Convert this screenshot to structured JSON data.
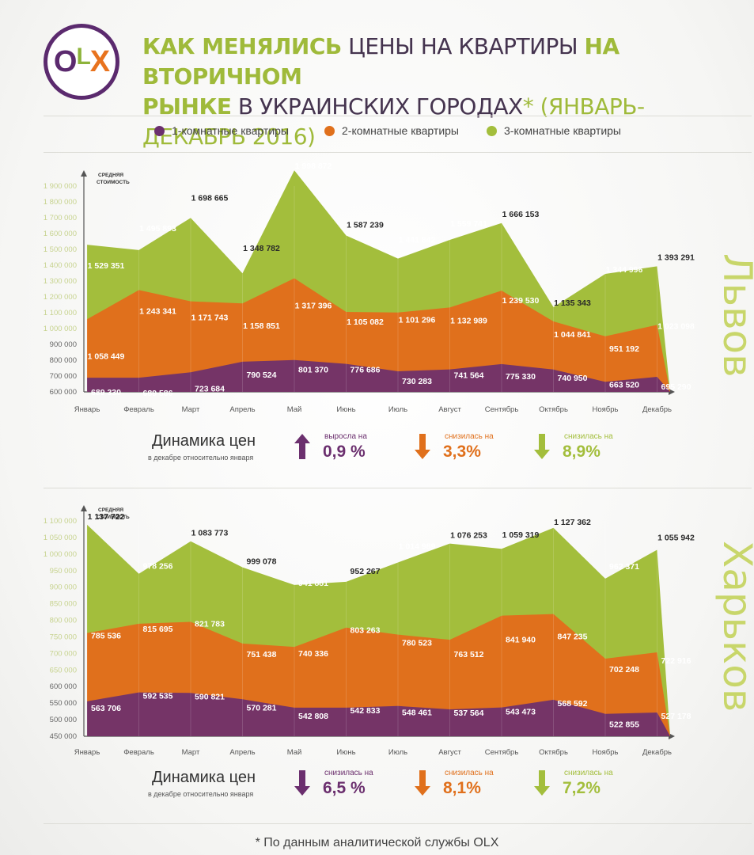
{
  "header": {
    "title_p1_hl": "КАК МЕНЯЛИСЬ",
    "title_p1_dk": " ЦЕНЫ НА КВАРТИРЫ ",
    "title_p1_hl2": "НА ВТОРИЧНОМ",
    "title_p2_hl": "РЫНКЕ",
    "title_p2_dk": " В УКРАИНСКИХ ГОРОДАХ",
    "title_ast": "*",
    "title_period": " (ЯНВАРЬ-ДЕКАБРЬ 2016)",
    "logo_o": "O",
    "logo_l": "L",
    "logo_x": "X"
  },
  "legend": [
    {
      "label": "1-комнатные квартиры",
      "color": "#6b2f6e"
    },
    {
      "label": "2-комнатные квартиры",
      "color": "#e0701c"
    },
    {
      "label": "3-комнатные квартиры",
      "color": "#a3be3c"
    }
  ],
  "chart_data": [
    {
      "type": "area",
      "city": "Львов",
      "ylabel": "СРЕДНЯЯ СТОИМОСТЬ",
      "ylim": [
        600000,
        1900000
      ],
      "yticks": [
        "600 000",
        "700 000",
        "800 000",
        "900 000",
        "1 000 000",
        "1 100 000",
        "1 200 000",
        "1 300 000",
        "1 400 000",
        "1 500 000",
        "1 600 000",
        "1 700 000",
        "1 800 000",
        "1 900 000"
      ],
      "categories": [
        "Январь",
        "Февраль",
        "Март",
        "Апрель",
        "Май",
        "Июнь",
        "Июль",
        "Август",
        "Сентябрь",
        "Октябрь",
        "Ноябрь",
        "Декабрь"
      ],
      "series": [
        {
          "name": "1-комнатные квартиры",
          "color": "#6b2f6e",
          "values": [
            689330,
            689586,
            723684,
            790524,
            801370,
            776686,
            730283,
            741564,
            775330,
            740950,
            663520,
            695290
          ],
          "labels": [
            "689 330",
            "689 586",
            "723 684",
            "790 524",
            "801 370",
            "776 686",
            "730 283",
            "741 564",
            "775 330",
            "740 950",
            "663 520",
            "695 290"
          ]
        },
        {
          "name": "2-комнатные квартиры",
          "color": "#e0701c",
          "values": [
            1058449,
            1243341,
            1171743,
            1158851,
            1317396,
            1105082,
            1101296,
            1132989,
            1239530,
            1044841,
            951192,
            1023098
          ],
          "labels": [
            "1 058 449",
            "1 243 341",
            "1 171 743",
            "1 158 851",
            "1 317 396",
            "1 105 082",
            "1 101 296",
            "1 132 989",
            "1 239 530",
            "1 044 841",
            "951 192",
            "1 023 098"
          ]
        },
        {
          "name": "3-комнатные квартиры",
          "color": "#a3be3c",
          "values": [
            1529351,
            1495893,
            1698665,
            1348782,
            1998872,
            1587239,
            1441842,
            1559741,
            1666153,
            1135343,
            1344996,
            1393291
          ],
          "labels": [
            "1 529 351",
            "1 495 893",
            "1 698 665",
            "1 348 782",
            "1 998 872",
            "1 587 239",
            "1 441 842",
            "1 559 741",
            "1 666 153",
            "1 135 343",
            "1 344 996",
            "1 393 291"
          ]
        }
      ],
      "dynamics": {
        "title": "Динамика цен",
        "subtitle": "в декабре относительно января",
        "items": [
          {
            "direction": "up",
            "label": "выросла на",
            "value": "0,9 %",
            "color": "#6b2f6e"
          },
          {
            "direction": "down",
            "label": "снизилась на",
            "value": "3,3%",
            "color": "#e0701c"
          },
          {
            "direction": "down",
            "label": "снизилась на",
            "value": "8,9%",
            "color": "#a3be3c"
          }
        ]
      }
    },
    {
      "type": "area",
      "city": "Харьков",
      "ylabel": "СРЕДНЯЯ СТОИМОСТЬ",
      "ylim": [
        450000,
        1150000
      ],
      "yticks": [
        "450 000",
        "500 000",
        "550 000",
        "600 000",
        "650 000",
        "700 000",
        "750 000",
        "800 000",
        "850 000",
        "900 000",
        "950 000",
        "1 000 000",
        "1 050 000",
        "1 100 000"
      ],
      "categories": [
        "Январь",
        "Февраль",
        "Март",
        "Апрель",
        "Май",
        "Июнь",
        "Июль",
        "Август",
        "Сентябрь",
        "Октябрь",
        "Ноябрь",
        "Декабрь"
      ],
      "series": [
        {
          "name": "1-комнатные квартиры",
          "color": "#6b2f6e",
          "values": [
            563706,
            592535,
            590821,
            570281,
            542808,
            542833,
            548461,
            537564,
            543473,
            568592,
            522855,
            527178
          ],
          "labels": [
            "563 706",
            "592 535",
            "590 821",
            "570 281",
            "542 808",
            "542 833",
            "548 461",
            "537 564",
            "543 473",
            "568 592",
            "522 855",
            "527 178"
          ]
        },
        {
          "name": "2-комнатные квартиры",
          "color": "#e0701c",
          "values": [
            785536,
            815695,
            821783,
            751438,
            740336,
            803263,
            780523,
            763512,
            841940,
            847235,
            702248,
            722916
          ],
          "labels": [
            "785 536",
            "815 695",
            "821 783",
            "751 438",
            "740 336",
            "803 263",
            "780 523",
            "763 512",
            "841 940",
            "847 235",
            "702 248",
            "722 916"
          ]
        },
        {
          "name": "3-комнатные квартиры",
          "color": "#a3be3c",
          "values": [
            1137722,
            978256,
            1083773,
            999078,
            941881,
            952267,
            1014989,
            1076253,
            1059319,
            1127362,
            962371,
            1055942
          ],
          "labels": [
            "1 137 722",
            "978 256",
            "1 083 773",
            "999 078",
            "941 881",
            "952 267",
            "1 014 989",
            "1 076 253",
            "1 059 319",
            "1 127 362",
            "962 371",
            "1 055 942"
          ]
        }
      ],
      "dynamics": {
        "title": "Динамика цен",
        "subtitle": "в декабре относительно января",
        "items": [
          {
            "direction": "down",
            "label": "снизилась на",
            "value": "6,5 %",
            "color": "#6b2f6e"
          },
          {
            "direction": "down",
            "label": "снизилась на",
            "value": "8,1%",
            "color": "#e0701c"
          },
          {
            "direction": "down",
            "label": "снизилась на",
            "value": "7,2%",
            "color": "#a3be3c"
          }
        ]
      }
    }
  ],
  "footer": "* По данным аналитической службы OLX"
}
